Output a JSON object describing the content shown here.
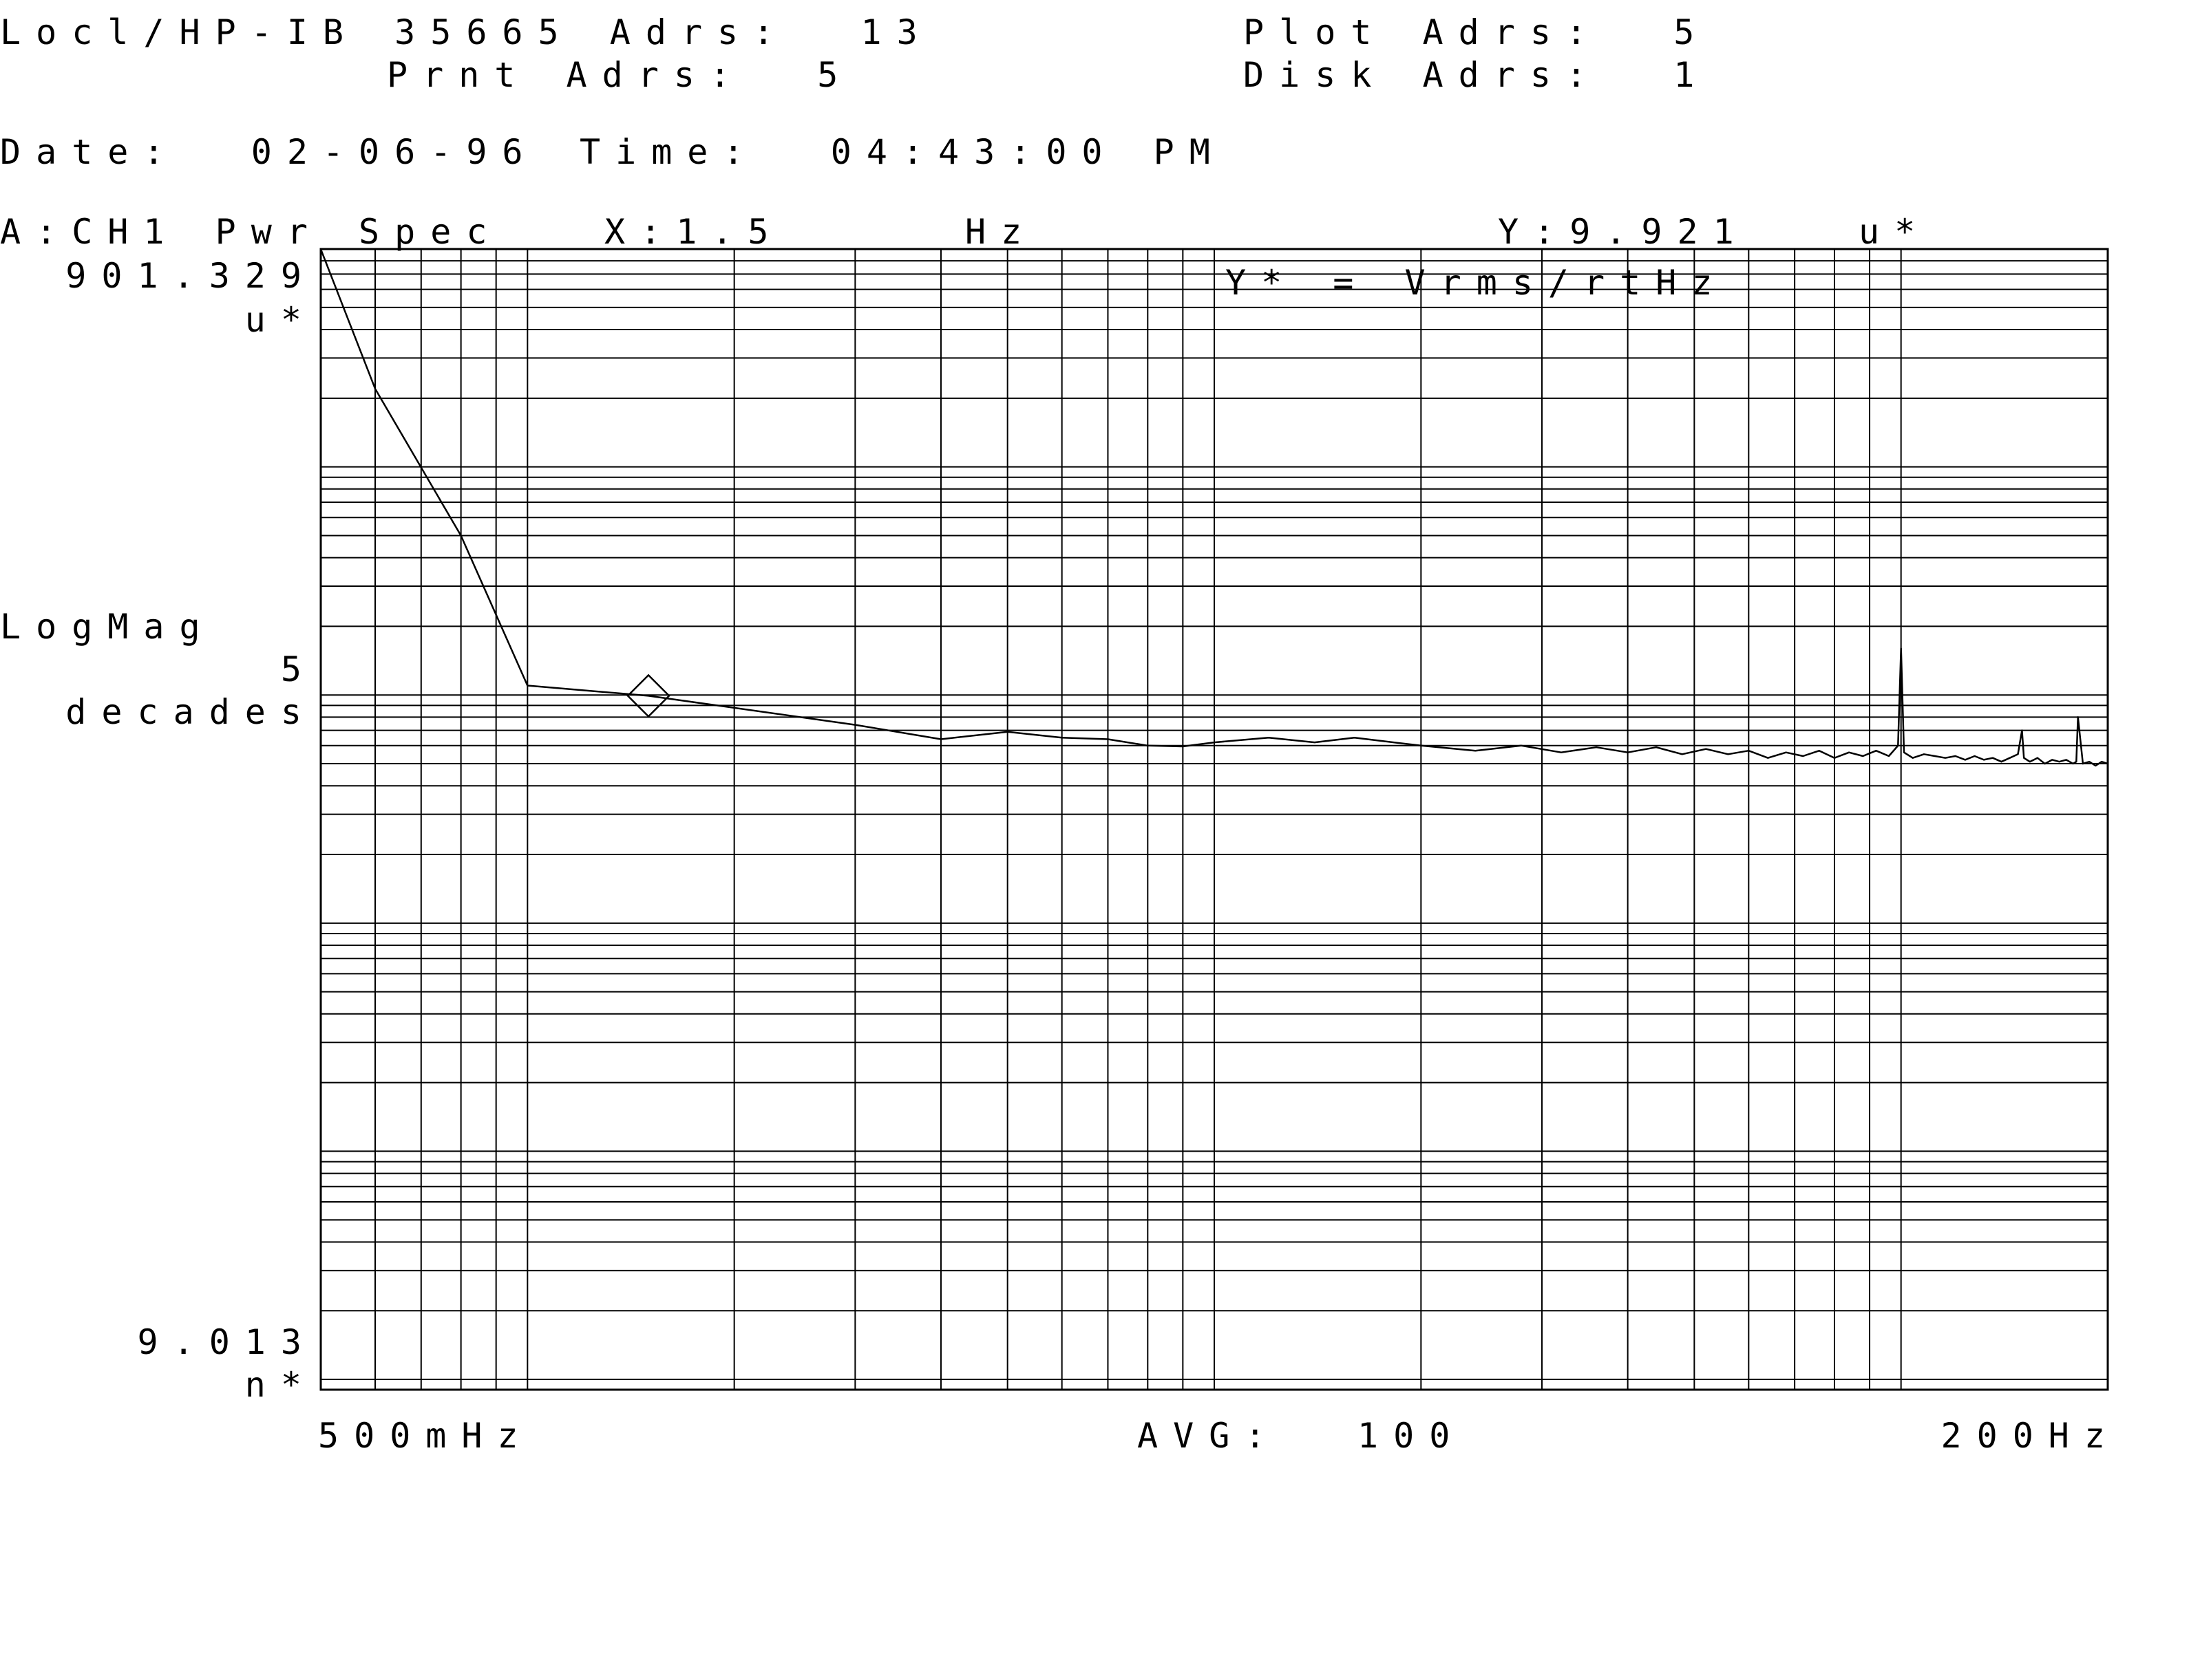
{
  "header": {
    "interface_label": "Locl/HP-IB 35665 Adrs:  13",
    "printer_label": "Prnt Adrs:  5",
    "plotter_label": "Plot Adrs:  5",
    "disk_label": "Disk Adrs:  1",
    "date_label": "Date:  02-06-96",
    "time_label": "Time:  04:43:00 PM"
  },
  "trace": {
    "label": "A:CH1 Pwr Spec",
    "marker_x_label": "X:1.5",
    "marker_x_unit": "Hz",
    "marker_y_label": "Y:9.921",
    "marker_y_unit": "u*",
    "units_note": "Y* = Vrms/rtHz"
  },
  "y_axis": {
    "top_value": "901.329",
    "top_unit": "u*",
    "scale_label": "LogMag",
    "decades_value": "5",
    "decades_label": "decades",
    "bottom_value": "9.013",
    "bottom_unit": "n*"
  },
  "x_axis": {
    "start_label": "500mHz",
    "stop_label": "200Hz"
  },
  "footer": {
    "avg_label": "AVG:",
    "avg_value": "100"
  },
  "colors": {
    "ink": "#000000",
    "background": "#ffffff"
  },
  "chart_data": {
    "type": "line",
    "title": "A:CH1 Pwr Spec",
    "xlabel": "Hz",
    "ylabel": "Vrms/rtHz",
    "x_scale": "log",
    "y_scale": "log",
    "xlim": [
      0.5,
      200
    ],
    "ylim": [
      9.013e-09,
      0.000901329
    ],
    "grid": true,
    "marker": {
      "x": 1.5,
      "y": 9.921e-06
    },
    "series": [
      {
        "x": [
          0.5,
          0.6,
          0.8,
          1.0,
          1.5,
          3.0,
          4.0,
          5.0,
          6.0,
          7.0,
          8.0,
          9.0,
          10.0,
          12.0,
          14.0,
          16.0,
          20.0,
          24.0,
          28.0,
          32.0,
          36.0,
          40.0,
          44.0,
          48.0,
          52.0,
          56.0,
          60.0,
          64.0,
          68.0,
          72.0,
          76.0,
          80.0,
          84.0,
          88.0,
          92.0,
          96.0,
          99.0,
          100.0,
          101.0,
          104.0,
          108.0,
          112.0,
          116.0,
          120.0,
          124.0,
          128.0,
          132.0,
          136.0,
          140.0,
          144.0,
          148.0,
          150.0,
          151.0,
          154.0,
          158.0,
          162.0,
          166.0,
          170.0,
          174.0,
          178.0,
          180.0,
          181.0,
          184.0,
          188.0,
          192.0,
          196.0,
          200.0
        ],
        "y": [
          0.0009,
          0.00022,
          5e-05,
          1.1e-05,
          9.921e-06,
          7.4e-06,
          6.4e-06,
          6.9e-06,
          6.5e-06,
          6.4e-06,
          6e-06,
          5.95e-06,
          6.2e-06,
          6.5e-06,
          6.2e-06,
          6.5e-06,
          6e-06,
          5.7e-06,
          6e-06,
          5.6e-06,
          5.9e-06,
          5.6e-06,
          5.9e-06,
          5.5e-06,
          5.8e-06,
          5.5e-06,
          5.7e-06,
          5.3e-06,
          5.6e-06,
          5.4e-06,
          5.7e-06,
          5.3e-06,
          5.6e-06,
          5.4e-06,
          5.7e-06,
          5.4e-06,
          6e-06,
          1.6e-05,
          5.6e-06,
          5.3e-06,
          5.5e-06,
          5.4e-06,
          5.3e-06,
          5.4e-06,
          5.2e-06,
          5.4e-06,
          5.2e-06,
          5.3e-06,
          5.1e-06,
          5.3e-06,
          5.5e-06,
          7e-06,
          5.3e-06,
          5.1e-06,
          5.3e-06,
          5e-06,
          5.2e-06,
          5.1e-06,
          5.2e-06,
          5e-06,
          5.1e-06,
          8e-06,
          5e-06,
          5.1e-06,
          4.9e-06,
          5.1e-06,
          5e-06
        ]
      }
    ]
  }
}
